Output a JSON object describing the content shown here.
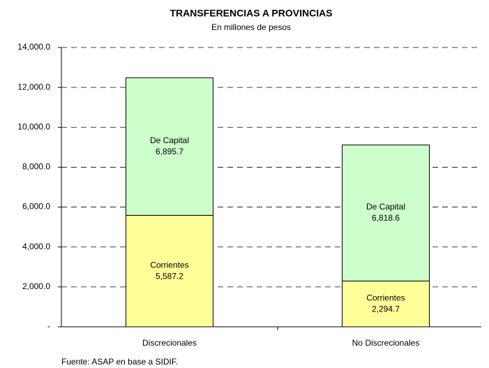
{
  "chart_data": {
    "type": "stacked_bar",
    "title": "TRANSFERENCIAS A PROVINCIAS",
    "subtitle": "En millones de pesos",
    "note": "Fuente: ASAP en base a SIDIF.",
    "categories": [
      "Discrecionales",
      "No Discrecionales"
    ],
    "series": [
      {
        "name": "Corrientes",
        "color": "#ffff99",
        "values": [
          5587.2,
          2294.7
        ],
        "value_labels": [
          "5,587.2",
          "2,294.7"
        ]
      },
      {
        "name": "De Capital",
        "color": "#ccffcc",
        "values": [
          6895.7,
          6818.6
        ],
        "value_labels": [
          "6,895.7",
          "6,818.6"
        ]
      }
    ],
    "ylim": [
      0,
      14000
    ],
    "yticks": [
      {
        "value": 0,
        "label": "-"
      },
      {
        "value": 2000,
        "label": "2,000.0"
      },
      {
        "value": 4000,
        "label": "4,000.0"
      },
      {
        "value": 6000,
        "label": "6,000.0"
      },
      {
        "value": 8000,
        "label": "8,000.0"
      },
      {
        "value": 10000,
        "label": "10,000.0"
      },
      {
        "value": 12000,
        "label": "12,000.0"
      },
      {
        "value": 14000,
        "label": "14,000.0"
      }
    ],
    "grid": true
  }
}
